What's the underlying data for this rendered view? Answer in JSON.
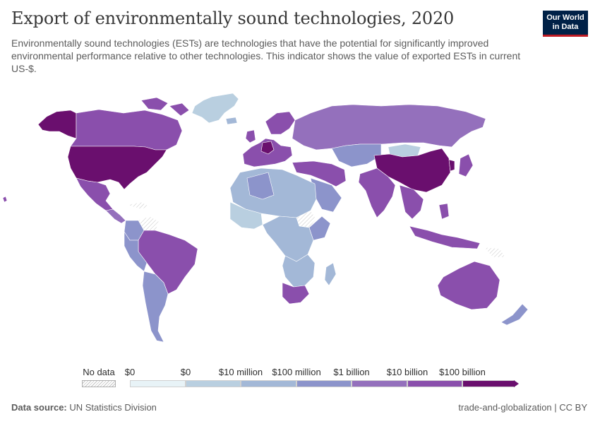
{
  "header": {
    "title": "Export of environmentally sound technologies, 2020",
    "subtitle": "Environmentally sound technologies (ESTs) are technologies that have the potential for significantly improved environmental performance relative to other technologies. This indicator shows the value of exported ESTs in current US-$.",
    "logo_line1": "Our World",
    "logo_line2": "in Data"
  },
  "legend": {
    "no_data_label": "No data",
    "bins": [
      {
        "label": "$0",
        "color": "#e8f3f7"
      },
      {
        "label": "$0",
        "color": "#b9cfe0"
      },
      {
        "label": "$10 million",
        "color": "#a3b8d7"
      },
      {
        "label": "$100 million",
        "color": "#8c94cb"
      },
      {
        "label": "$1 billion",
        "color": "#9470bc"
      },
      {
        "label": "$10 billion",
        "color": "#8a4fac"
      },
      {
        "label": "$100 billion",
        "color": "#6a0f6e"
      }
    ]
  },
  "map": {
    "colors": {
      "ocean": "#ffffff",
      "border": "#ffffff",
      "highest": "#6a0f6e",
      "very_high": "#8a4fac",
      "high": "#9470bc",
      "mid": "#8c94cb",
      "low": "#a3b8d7",
      "very_low": "#b9cfe0",
      "nodata": "#eeeeee"
    }
  },
  "footer": {
    "source_label": "Data source:",
    "source_value": "UN Statistics Division",
    "right_text": "trade-and-globalization | CC BY"
  }
}
